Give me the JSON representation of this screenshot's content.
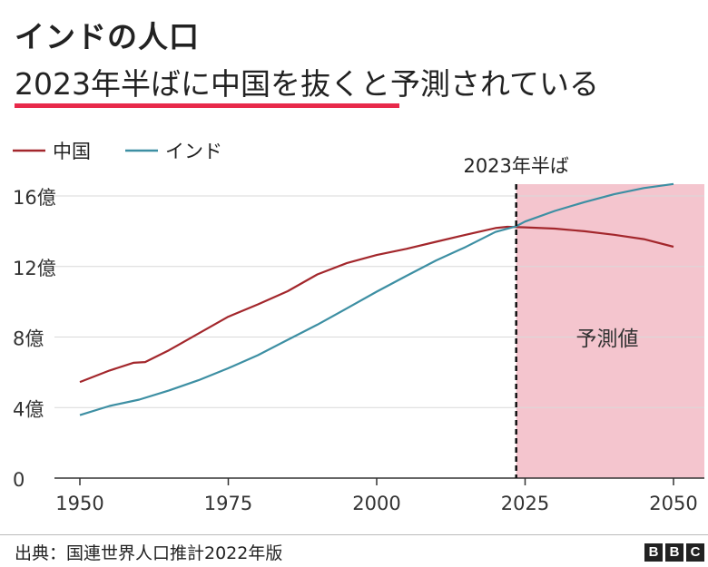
{
  "title": "インドの人口",
  "subtitle": "2023年半ばに中国を抜くと予測されている",
  "source": "出典：国連世界人口推計2022年版",
  "logo": [
    "B",
    "B",
    "C"
  ],
  "chart_data": {
    "type": "line",
    "xlim": [
      1945,
      2055
    ],
    "ylim": [
      0,
      1700000000
    ],
    "xticks": [
      1950,
      1975,
      2000,
      2025,
      2050
    ],
    "yticks": [
      {
        "value": 0,
        "label": "0"
      },
      {
        "value": 400000000,
        "label": "4億"
      },
      {
        "value": 800000000,
        "label": "8億"
      },
      {
        "value": 1200000000,
        "label": "12億"
      },
      {
        "value": 1600000000,
        "label": "16億"
      }
    ],
    "grid": true,
    "legend": "top-left",
    "marker": {
      "x": 2023.5,
      "label": "2023年半ば"
    },
    "forecast_region": {
      "from": 2023.5,
      "to": 2055,
      "label": "予測値",
      "color": "#f4c5ce"
    },
    "series": [
      {
        "name": "中国",
        "color": "#a3272c",
        "x": [
          1950,
          1955,
          1959,
          1961,
          1965,
          1970,
          1975,
          1980,
          1985,
          1990,
          1995,
          2000,
          2005,
          2010,
          2015,
          2020,
          2022,
          2025,
          2030,
          2035,
          2040,
          2045,
          2050
        ],
        "values": [
          545000000,
          610000000,
          654000000,
          658000000,
          725000000,
          820000000,
          915000000,
          985000000,
          1060000000,
          1155000000,
          1220000000,
          1265000000,
          1300000000,
          1340000000,
          1380000000,
          1418000000,
          1425000000,
          1422000000,
          1415000000,
          1400000000,
          1380000000,
          1355000000,
          1312000000
        ]
      },
      {
        "name": "インド",
        "color": "#3d8fa3",
        "x": [
          1950,
          1955,
          1960,
          1965,
          1970,
          1975,
          1980,
          1985,
          1990,
          1995,
          2000,
          2005,
          2010,
          2015,
          2020,
          2023.5,
          2025,
          2030,
          2035,
          2040,
          2045,
          2050
        ],
        "values": [
          357000000,
          409000000,
          445000000,
          497000000,
          555000000,
          623000000,
          697000000,
          784000000,
          870000000,
          963000000,
          1057000000,
          1147000000,
          1234000000,
          1311000000,
          1396000000,
          1428000000,
          1455000000,
          1515000000,
          1565000000,
          1610000000,
          1645000000,
          1668000000
        ]
      }
    ]
  }
}
